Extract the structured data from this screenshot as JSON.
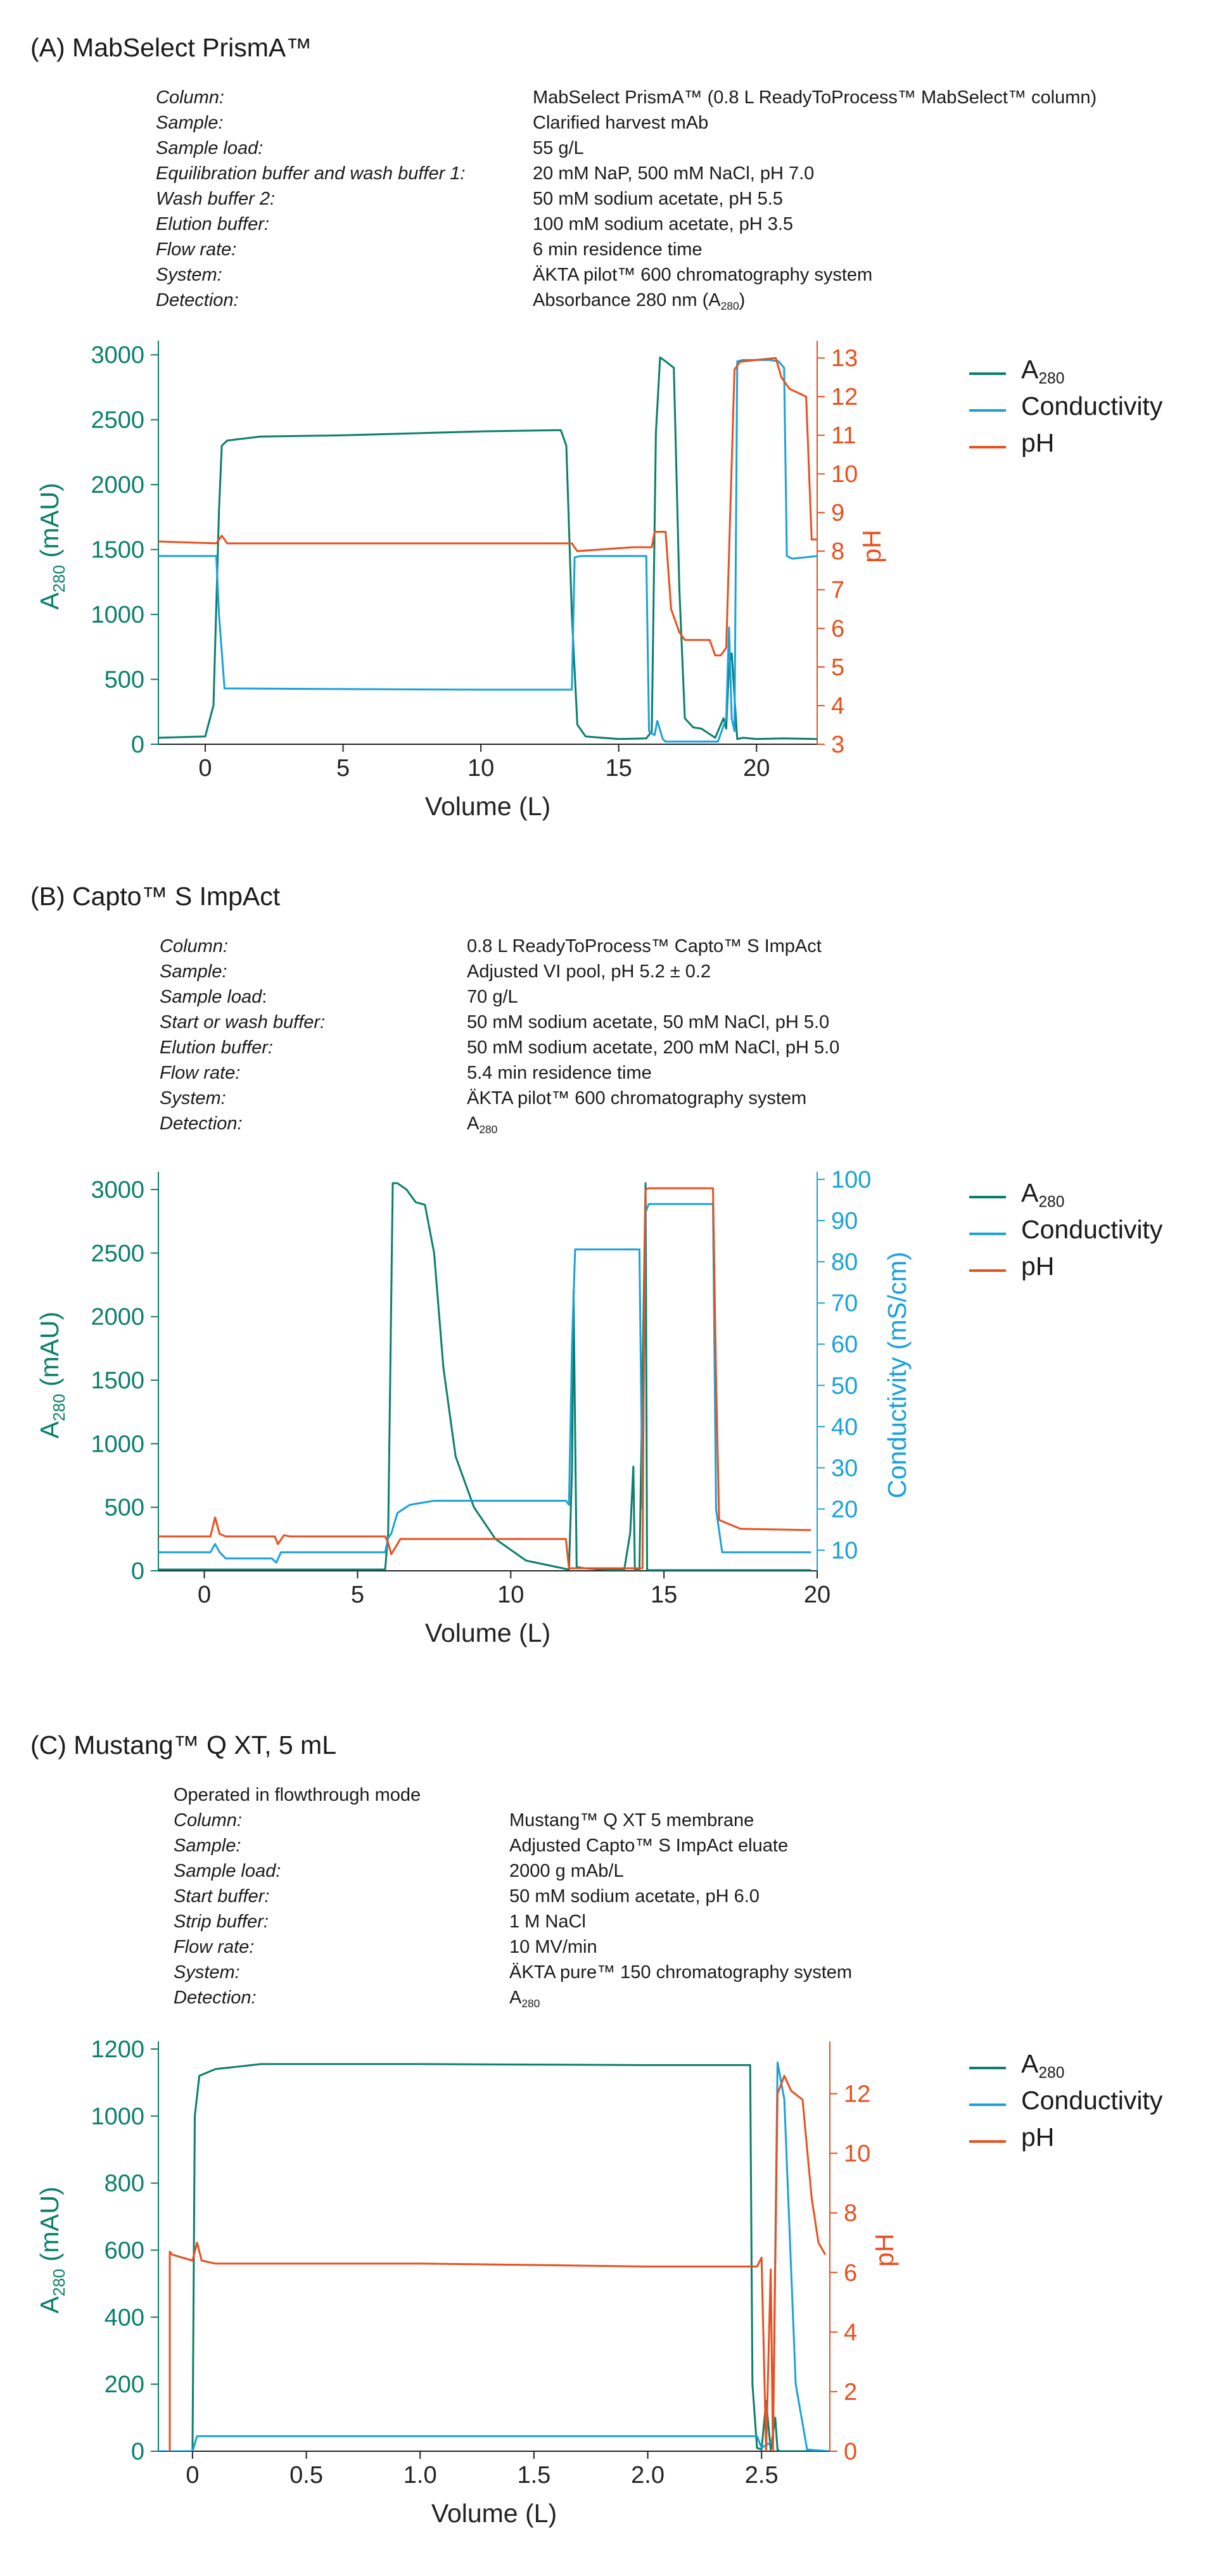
{
  "sections": [
    {
      "title": "(A) MabSelect PrismA™",
      "intro": "",
      "conditions": [
        {
          "label": "Column:",
          "value": "MabSelect PrismA™ (0.8 L ReadyToProcess™ MabSelect™ column)"
        },
        {
          "label": "Sample:",
          "value": "Clarified harvest mAb"
        },
        {
          "label": "Sample load:",
          "value": "55 g/L"
        },
        {
          "label": "Equilibration buffer and wash buffer 1:",
          "value": "20 mM NaP, 500 mM NaCl, pH 7.0"
        },
        {
          "label": "Wash buffer 2:",
          "value": "50 mM sodium acetate, pH 5.5"
        },
        {
          "label": "Elution buffer:",
          "value": "100 mM sodium acetate, pH 3.5"
        },
        {
          "label": "Flow rate:",
          "value": "6 min residence time"
        },
        {
          "label": "System:",
          "value": "ÄKTA pilot™ 600 chromatography system"
        },
        {
          "label": "Detection:",
          "value": "Absorbance 280 nm (A",
          "value_sub": "280",
          "value_tail": ")"
        }
      ]
    },
    {
      "title": "(B) Capto™ S ImpAct",
      "intro": "",
      "conditions": [
        {
          "label": "Column:",
          "value": "0.8 L ReadyToProcess™ Capto™ S ImpAct"
        },
        {
          "label": "Sample:",
          "value": "Adjusted VI pool, pH 5.2 ± 0.2"
        },
        {
          "label": "Sample load",
          "label_tail": ":",
          "value": "70 g/L"
        },
        {
          "label": "Start or wash buffer:",
          "value": "50 mM sodium acetate, 50 mM NaCl, pH 5.0"
        },
        {
          "label": "Elution buffer:",
          "value": "50 mM sodium acetate, 200 mM NaCl, pH 5.0"
        },
        {
          "label": "Flow rate:",
          "value": "5.4 min residence time"
        },
        {
          "label": "System:",
          "value": "ÄKTA pilot™ 600 chromatography system"
        },
        {
          "label": "Detection:",
          "value": "A",
          "value_sub": "280",
          "value_tail": ""
        }
      ]
    },
    {
      "title": "(C) Mustang™ Q XT, 5 mL",
      "intro": "Operated in flowthrough mode",
      "conditions": [
        {
          "label": "Column:",
          "value": "Mustang™ Q XT 5 membrane"
        },
        {
          "label": "Sample:",
          "value": "Adjusted Capto™ S ImpAct eluate"
        },
        {
          "label": "Sample load:",
          "value": "2000 g mAb/L"
        },
        {
          "label": "Start buffer:",
          "value": "50 mM sodium acetate, pH 6.0"
        },
        {
          "label": "Strip buffer:",
          "value": "1 M NaCl"
        },
        {
          "label": "Flow rate:",
          "value": "10 MV/min"
        },
        {
          "label": "System:",
          "value": "ÄKTA pure™ 150 chromatography system"
        },
        {
          "label": "Detection:",
          "value": "A",
          "value_sub": "280",
          "value_tail": ""
        }
      ]
    }
  ],
  "legend": [
    {
      "name": "A",
      "name_sub": "280",
      "color": "#0a7f6b"
    },
    {
      "name": "Conductivity",
      "name_sub": "",
      "color": "#1aa1db"
    },
    {
      "name": "pH",
      "name_sub": "",
      "color": "#e8501e"
    }
  ],
  "chart_data": [
    {
      "type": "line",
      "xlabel": "Volume (L)",
      "ylabel_left": "A",
      "ylabel_left_sub": "280",
      "ylabel_left_tail": " (mAU)",
      "ylabel_right": "pH",
      "xlim": [
        -1.7,
        22.2
      ],
      "xticks": [
        0,
        5,
        10,
        15,
        20
      ],
      "y_left_lim": [
        0,
        3050
      ],
      "y_left_ticks": [
        0,
        500,
        1000,
        1500,
        2000,
        2500,
        3000
      ],
      "y_right_lim": [
        3,
        13.25
      ],
      "y_right_ticks": [
        3,
        4,
        5,
        6,
        7,
        8,
        9,
        10,
        11,
        12,
        13
      ],
      "series": [
        {
          "name": "A280",
          "axis": "left",
          "color": "#0a7f6b",
          "x": [
            -1.7,
            0.0,
            0.3,
            0.5,
            0.6,
            0.8,
            2.0,
            5.0,
            10.0,
            12.9,
            13.1,
            13.3,
            13.5,
            13.8,
            15.0,
            16.0,
            16.2,
            16.35,
            16.5,
            16.7,
            17.0,
            17.2,
            17.4,
            17.7,
            18.0,
            18.5,
            18.8,
            18.9,
            19.0,
            19.1,
            19.3,
            19.5,
            20.0,
            21.0,
            22.2
          ],
          "y": [
            50,
            60,
            300,
            1800,
            2300,
            2340,
            2370,
            2380,
            2410,
            2420,
            2300,
            1000,
            150,
            60,
            40,
            45,
            100,
            2400,
            2980,
            2950,
            2900,
            1200,
            200,
            130,
            120,
            50,
            200,
            120,
            600,
            700,
            40,
            50,
            40,
            45,
            40
          ]
        },
        {
          "name": "Conductivity",
          "axis": "left",
          "color": "#1aa1db",
          "x": [
            -1.7,
            0.4,
            0.5,
            0.7,
            5.0,
            10.0,
            13.3,
            13.4,
            13.6,
            16.0,
            16.1,
            16.3,
            16.4,
            16.6,
            16.7,
            18.6,
            18.9,
            19.0,
            19.1,
            19.2,
            19.3,
            19.5,
            20.5,
            20.8,
            21.0,
            21.1,
            21.3,
            22.2
          ],
          "y": [
            1450,
            1450,
            1000,
            430,
            425,
            420,
            420,
            1440,
            1450,
            1450,
            100,
            70,
            180,
            40,
            20,
            20,
            200,
            900,
            200,
            100,
            2950,
            2960,
            2960,
            2950,
            2900,
            1450,
            1430,
            1450
          ]
        },
        {
          "name": "pH",
          "axis": "right",
          "color": "#e8501e",
          "x": [
            -1.7,
            0.4,
            0.6,
            0.8,
            5.0,
            10.0,
            13.3,
            13.5,
            15.5,
            16.2,
            16.3,
            16.7,
            16.9,
            17.2,
            17.4,
            17.8,
            18.3,
            18.5,
            18.7,
            18.9,
            19.2,
            19.4,
            20.0,
            20.7,
            20.9,
            21.2,
            21.8,
            22.0,
            22.2
          ],
          "y": [
            8.25,
            8.2,
            8.4,
            8.2,
            8.2,
            8.2,
            8.2,
            8.0,
            8.1,
            8.1,
            8.5,
            8.5,
            6.5,
            5.9,
            5.7,
            5.7,
            5.7,
            5.3,
            5.3,
            5.5,
            12.7,
            12.9,
            12.95,
            13.0,
            12.5,
            12.2,
            12.0,
            8.3,
            8.3
          ]
        }
      ]
    },
    {
      "type": "line",
      "xlabel": "Volume (L)",
      "ylabel_left": "A",
      "ylabel_left_sub": "280",
      "ylabel_left_tail": " (mAU)",
      "ylabel_right": "Conductivity (mS/cm)",
      "xlim": [
        -1.5,
        20
      ],
      "xticks": [
        0,
        5,
        10,
        15,
        20
      ],
      "y_left_lim": [
        0,
        3080
      ],
      "y_left_ticks": [
        0,
        500,
        1000,
        1500,
        2000,
        2500,
        3000
      ],
      "y_right_lim": [
        5,
        100
      ],
      "y_right_ticks": [
        10,
        20,
        30,
        40,
        50,
        60,
        70,
        80,
        90,
        100
      ],
      "series": [
        {
          "name": "A280",
          "axis": "left",
          "color": "#0a7f6b",
          "x": [
            -1.5,
            5.9,
            6.0,
            6.15,
            6.3,
            6.6,
            6.9,
            7.2,
            7.5,
            7.8,
            8.2,
            8.8,
            9.5,
            10.5,
            11.5,
            11.9,
            12.0,
            12.05,
            12.15,
            12.4,
            13.0,
            13.7,
            13.9,
            14.0,
            14.05,
            14.2,
            14.4,
            14.45,
            14.5,
            15.0,
            17.0,
            19.8
          ],
          "y": [
            10,
            10,
            300,
            3050,
            3050,
            3000,
            2900,
            2880,
            2500,
            1600,
            900,
            500,
            250,
            80,
            30,
            10,
            800,
            2200,
            30,
            20,
            10,
            5,
            300,
            820,
            10,
            5,
            3050,
            10,
            5,
            5,
            5,
            5
          ]
        },
        {
          "name": "Conductivity",
          "axis": "right",
          "color": "#1aa1db",
          "x": [
            -1.5,
            0.2,
            0.35,
            0.5,
            0.7,
            2.2,
            2.35,
            2.5,
            5.9,
            6.0,
            6.1,
            6.3,
            6.7,
            7.5,
            11.8,
            11.9,
            12.0,
            12.1,
            14.2,
            14.3,
            14.4,
            14.5,
            14.6,
            16.6,
            16.7,
            16.9,
            19.8
          ],
          "y": [
            9.5,
            9.5,
            11.5,
            9.5,
            8,
            8,
            7,
            9.5,
            9.5,
            13,
            14,
            19,
            21,
            22,
            22,
            21,
            60,
            83,
            83,
            20,
            92,
            94,
            94,
            94,
            20,
            9.5,
            9.5
          ]
        },
        {
          "name": "pH",
          "axis": "left",
          "color": "#e8501e",
          "x": [
            -1.5,
            0.2,
            0.35,
            0.5,
            0.7,
            2.3,
            2.4,
            2.6,
            2.8,
            5.9,
            6.0,
            6.1,
            6.4,
            11.8,
            11.9,
            12.0,
            14.3,
            14.35,
            14.4,
            14.5,
            16.6,
            16.7,
            16.8,
            17.5,
            19.8
          ],
          "y": [
            270,
            270,
            420,
            290,
            270,
            270,
            210,
            280,
            270,
            270,
            220,
            130,
            250,
            250,
            20,
            20,
            20,
            2000,
            3000,
            3010,
            3010,
            1500,
            400,
            330,
            320
          ]
        }
      ]
    },
    {
      "type": "line",
      "xlabel": "Volume (L)",
      "ylabel_left": "A",
      "ylabel_left_sub": "280",
      "ylabel_left_tail": " (mAU)",
      "ylabel_right": "pH",
      "xlim": [
        -0.15,
        2.8
      ],
      "xticks": [
        0,
        0.5,
        1.0,
        1.5,
        2.0,
        2.5
      ],
      "xtick_labels": [
        "0",
        "0.5",
        "1.0",
        "1.5",
        "2.0",
        "2.5"
      ],
      "y_left_lim": [
        0,
        1200
      ],
      "y_left_ticks": [
        0,
        200,
        400,
        600,
        800,
        1000,
        1200
      ],
      "y_right_lim": [
        0,
        13.5
      ],
      "y_right_ticks": [
        0,
        2,
        4,
        6,
        8,
        10,
        12
      ],
      "series": [
        {
          "name": "A280",
          "axis": "left",
          "color": "#0a7f6b",
          "x": [
            -0.15,
            0.0,
            0.01,
            0.03,
            0.1,
            0.3,
            1.0,
            2.0,
            2.45,
            2.46,
            2.48,
            2.5,
            2.52,
            2.54,
            2.56,
            2.57,
            2.58,
            2.6,
            2.8
          ],
          "y": [
            0,
            0,
            1000,
            1120,
            1140,
            1155,
            1155,
            1152,
            1152,
            200,
            10,
            5,
            150,
            5,
            100,
            5,
            0,
            0,
            0
          ]
        },
        {
          "name": "Conductivity",
          "axis": "left",
          "color": "#1aa1db",
          "x": [
            -0.15,
            0.0,
            0.02,
            0.1,
            1.0,
            2.0,
            2.48,
            2.5,
            2.55,
            2.57,
            2.6,
            2.65,
            2.7,
            2.8
          ],
          "y": [
            0,
            0,
            45,
            45,
            45,
            45,
            45,
            10,
            30,
            1160,
            1050,
            200,
            5,
            0
          ]
        },
        {
          "name": "pH",
          "axis": "right",
          "color": "#e8501e",
          "x": [
            -0.1,
            -0.1,
            -0.09,
            0.0,
            0.02,
            0.04,
            0.1,
            0.5,
            1.0,
            2.0,
            2.48,
            2.5,
            2.52,
            2.54,
            2.55,
            2.56,
            2.57,
            2.6,
            2.63,
            2.68,
            2.72,
            2.75,
            2.78
          ],
          "y": [
            0,
            6.7,
            6.6,
            6.4,
            7.0,
            6.4,
            6.3,
            6.3,
            6.3,
            6.2,
            6.2,
            6.5,
            0,
            6.1,
            0,
            6.2,
            12.0,
            12.6,
            12.1,
            11.8,
            8.5,
            7.0,
            6.6
          ]
        }
      ]
    }
  ]
}
